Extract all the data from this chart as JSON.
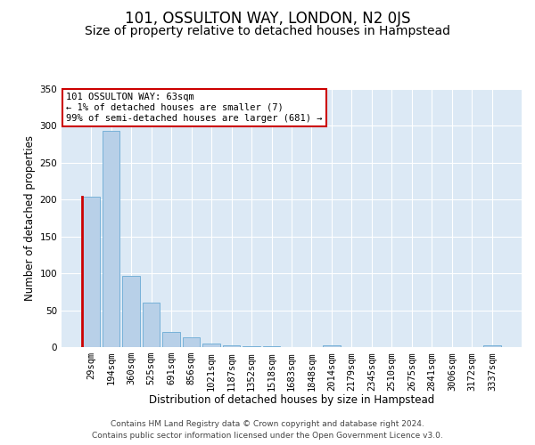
{
  "title": "101, OSSULTON WAY, LONDON, N2 0JS",
  "subtitle": "Size of property relative to detached houses in Hampstead",
  "xlabel": "Distribution of detached houses by size in Hampstead",
  "ylabel": "Number of detached properties",
  "bar_labels": [
    "29sqm",
    "194sqm",
    "360sqm",
    "525sqm",
    "691sqm",
    "856sqm",
    "1021sqm",
    "1187sqm",
    "1352sqm",
    "1518sqm",
    "1683sqm",
    "1848sqm",
    "2014sqm",
    "2179sqm",
    "2345sqm",
    "2510sqm",
    "2675sqm",
    "2841sqm",
    "3006sqm",
    "3172sqm",
    "3337sqm"
  ],
  "bar_heights": [
    204,
    293,
    97,
    60,
    21,
    13,
    5,
    2,
    1,
    1,
    0,
    0,
    2,
    0,
    0,
    0,
    0,
    0,
    0,
    0,
    2
  ],
  "bar_color": "#b8d0e8",
  "bar_edge_color": "#6aaad4",
  "ylim": [
    0,
    350
  ],
  "yticks": [
    0,
    50,
    100,
    150,
    200,
    250,
    300,
    350
  ],
  "annotation_title": "101 OSSULTON WAY: 63sqm",
  "annotation_line1": "← 1% of detached houses are smaller (7)",
  "annotation_line2": "99% of semi-detached houses are larger (681) →",
  "annotation_box_color": "#ffffff",
  "annotation_box_edge": "#cc0000",
  "marker_color": "#cc0000",
  "footer_line1": "Contains HM Land Registry data © Crown copyright and database right 2024.",
  "footer_line2": "Contains public sector information licensed under the Open Government Licence v3.0.",
  "bg_color": "#ffffff",
  "plot_bg_color": "#dce9f5",
  "grid_color": "#ffffff",
  "title_fontsize": 12,
  "subtitle_fontsize": 10,
  "axis_label_fontsize": 8.5,
  "tick_fontsize": 7.5,
  "annotation_fontsize": 7.5,
  "footer_fontsize": 6.5
}
